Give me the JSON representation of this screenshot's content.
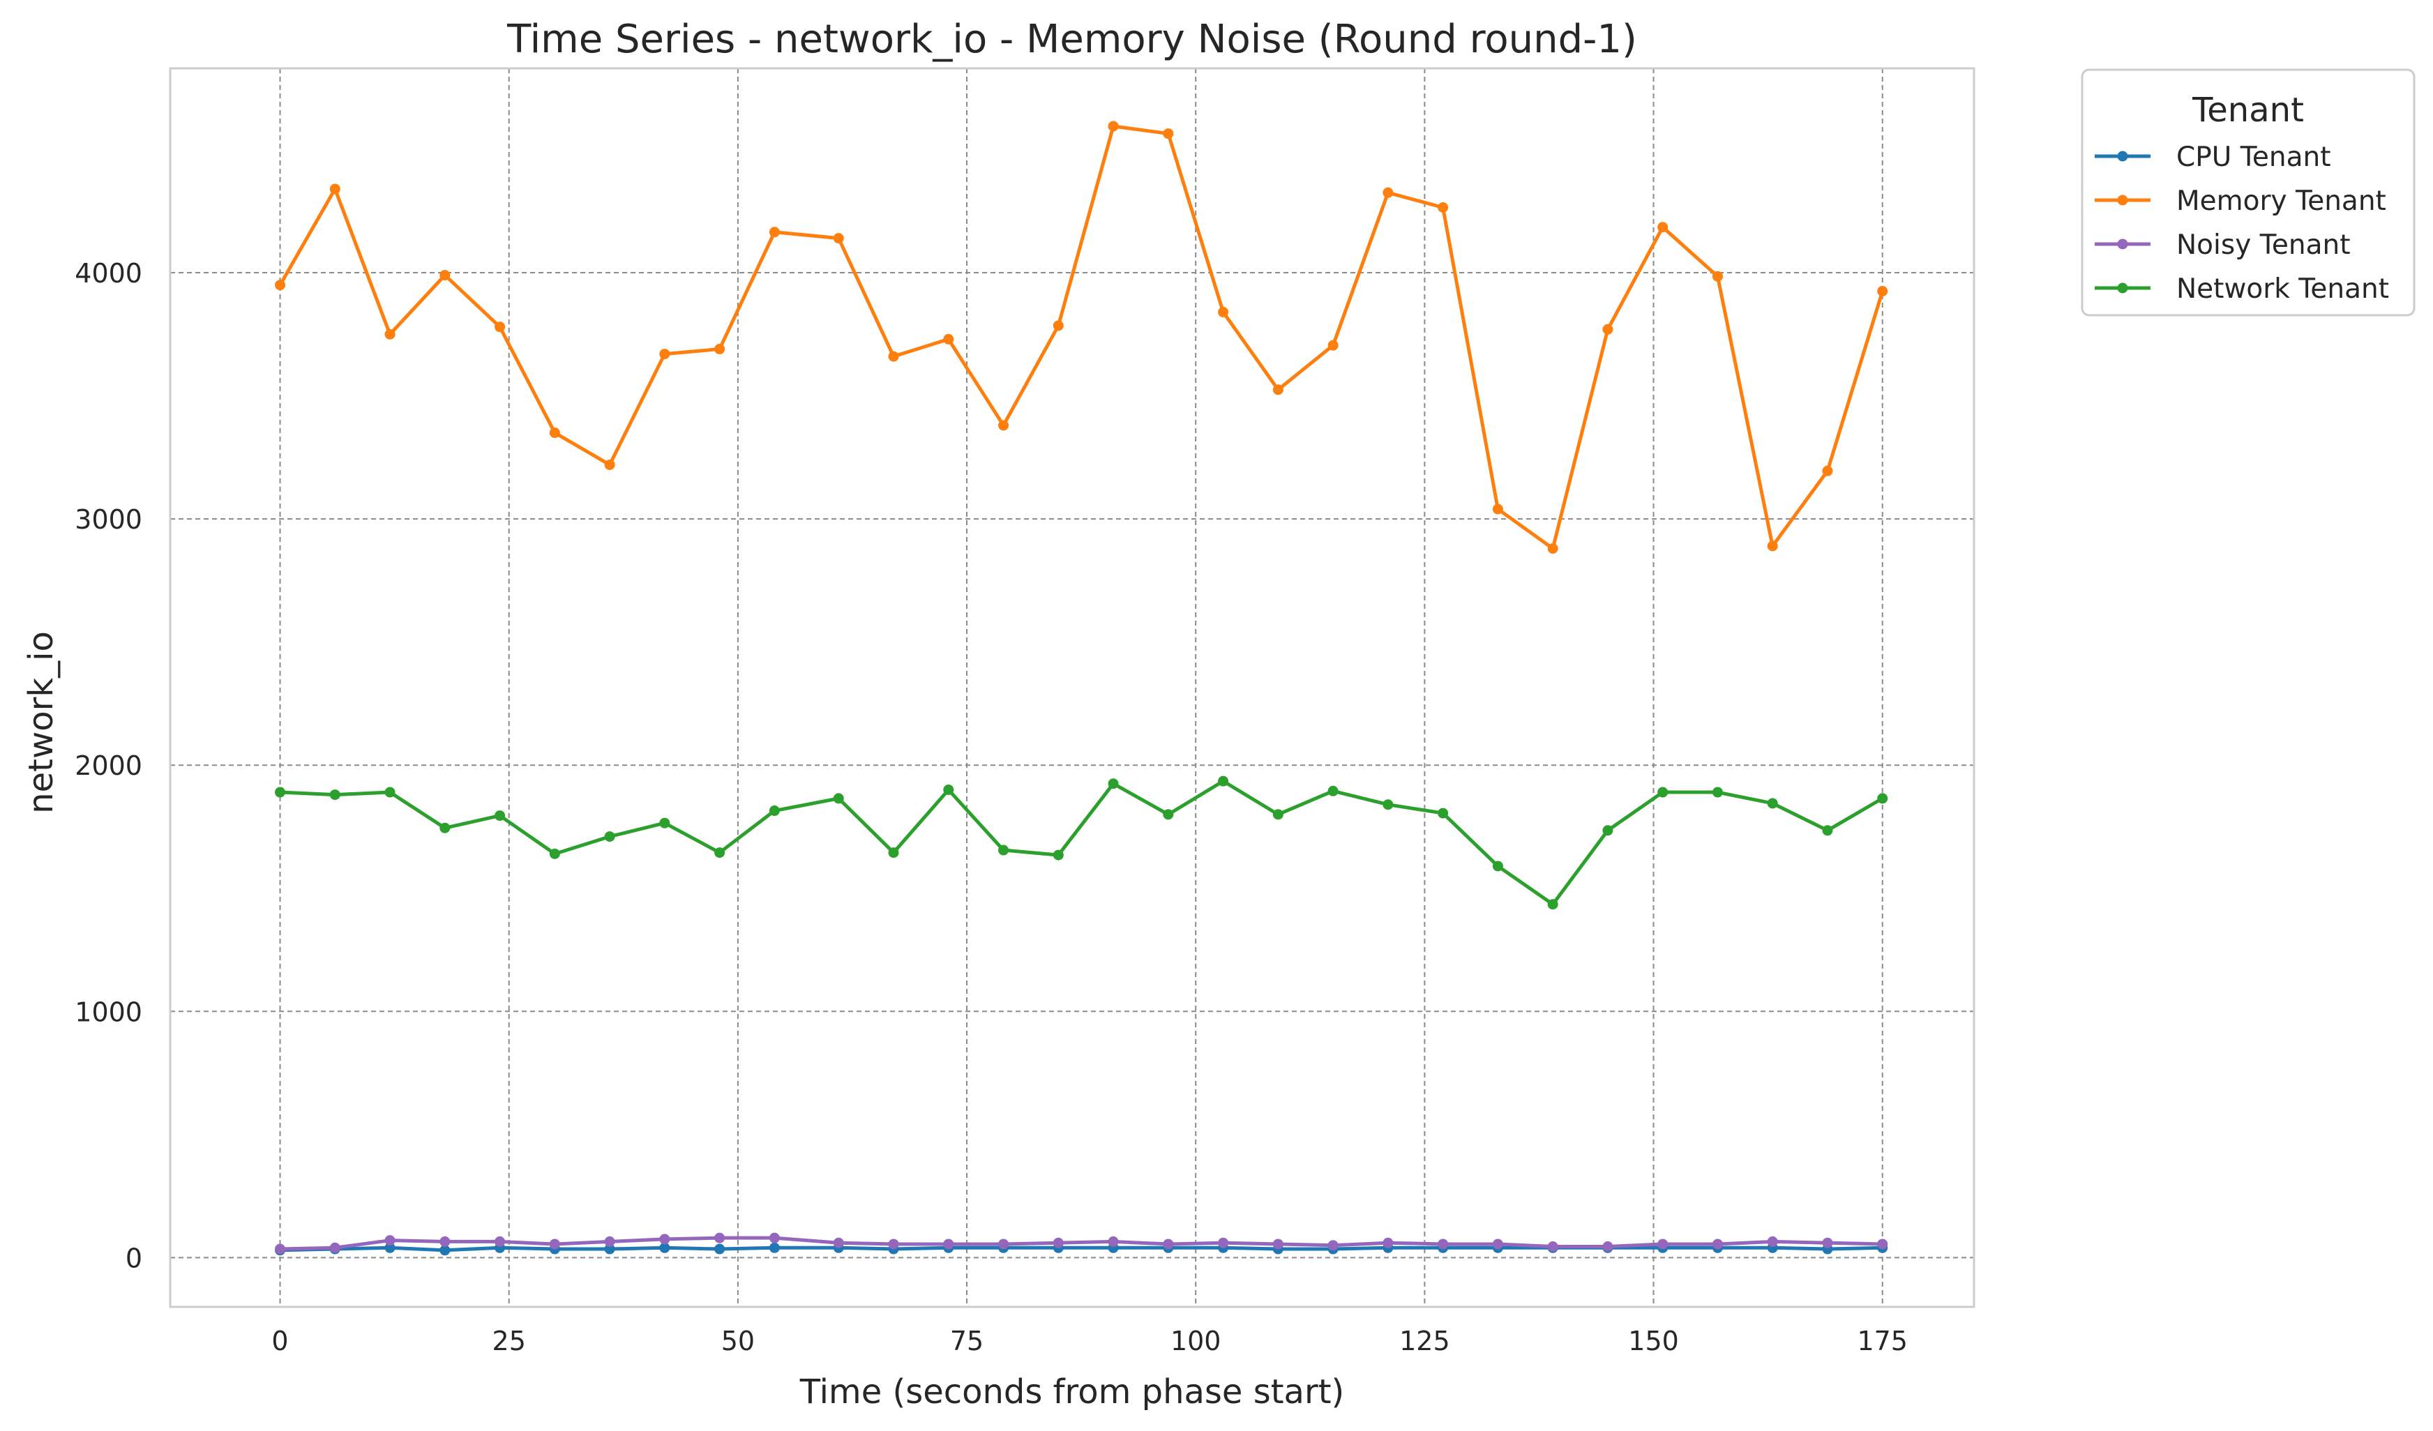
{
  "chart_data": {
    "type": "line",
    "title": "Time Series - network_io - Memory Noise (Round round-1)",
    "xlabel": "Time (seconds from phase start)",
    "ylabel": "network_io",
    "xlim": [
      -12,
      185
    ],
    "ylim": [
      -200,
      4830
    ],
    "xticks": [
      0,
      25,
      50,
      75,
      100,
      125,
      150,
      175
    ],
    "yticks": [
      0,
      1000,
      2000,
      3000,
      4000
    ],
    "grid": true,
    "legend": {
      "title": "Tenant",
      "position": "outside-top-right"
    },
    "x": [
      0,
      6,
      12,
      18,
      24,
      30,
      36,
      42,
      48,
      54,
      61,
      67,
      73,
      79,
      85,
      91,
      97,
      103,
      109,
      115,
      121,
      127,
      133,
      139,
      145,
      151,
      157,
      163,
      169,
      175
    ],
    "series": [
      {
        "name": "CPU Tenant",
        "color": "#1f77b4",
        "values": [
          30,
          35,
          40,
          30,
          40,
          35,
          35,
          40,
          35,
          40,
          40,
          35,
          40,
          40,
          40,
          40,
          40,
          40,
          35,
          35,
          40,
          40,
          40,
          40,
          40,
          40,
          40,
          40,
          35,
          40
        ]
      },
      {
        "name": "Memory Tenant",
        "color": "#ff7f0e",
        "values": [
          3950,
          4340,
          3750,
          3990,
          3780,
          3350,
          3220,
          3670,
          3690,
          4165,
          4140,
          3660,
          3730,
          3380,
          3785,
          4595,
          4565,
          3840,
          3525,
          3705,
          4325,
          4265,
          3040,
          2880,
          3770,
          4185,
          3985,
          2890,
          3195,
          3925
        ]
      },
      {
        "name": "Noisy Tenant",
        "color": "#9467bd",
        "values": [
          35,
          40,
          70,
          65,
          65,
          55,
          65,
          75,
          80,
          80,
          60,
          55,
          55,
          55,
          60,
          65,
          55,
          60,
          55,
          50,
          60,
          55,
          55,
          45,
          45,
          55,
          55,
          65,
          60,
          55
        ]
      },
      {
        "name": "Network Tenant",
        "color": "#2ca02c",
        "values": [
          1890,
          1880,
          1890,
          1745,
          1795,
          1640,
          1710,
          1765,
          1645,
          1815,
          1865,
          1645,
          1900,
          1655,
          1635,
          1925,
          1800,
          1935,
          1800,
          1895,
          1840,
          1805,
          1590,
          1435,
          1735,
          1890,
          1890,
          1845,
          1735,
          1865
        ]
      }
    ]
  }
}
